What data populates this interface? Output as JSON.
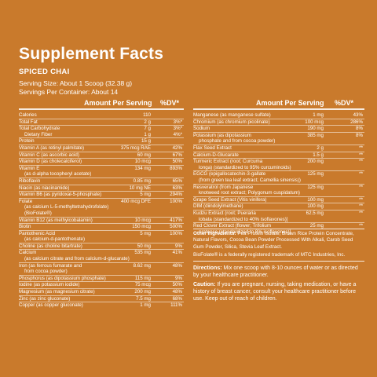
{
  "title": "Supplement Facts",
  "subtitle": "SPICED CHAI",
  "serving_size": "Serving Size: About 1 Scoop (32.38 g)",
  "servings_per_container": "Servings Per Container: About 14",
  "header_amount": "Amount Per Serving",
  "header_dv": "%DV*",
  "left_rows": [
    {
      "name": "Calories",
      "amount": "110",
      "dv": "",
      "sep": true
    },
    {
      "name": "Total Fat",
      "amount": "2 g",
      "dv": "3%*",
      "sep": true
    },
    {
      "name": "Total Carbohydrate",
      "amount": "7 g",
      "dv": "3%*",
      "sep": true
    },
    {
      "name": "Dietary Fiber",
      "amount": "1 g",
      "dv": "4%*",
      "indent": true
    },
    {
      "name": "Protein",
      "amount": "15 g",
      "dv": "",
      "sep": true
    },
    {
      "name": "Vitamin A (as retinyl palmitate)",
      "amount": "375 mcg RAE",
      "dv": "42%",
      "sep": true
    },
    {
      "name": "Vitamin C (as ascorbic acid)",
      "amount": "60 mg",
      "dv": "67%",
      "sep": true
    },
    {
      "name": "Vitamin D (as cholecalciferol)",
      "amount": "10 mcg",
      "dv": "50%",
      "sep": true
    },
    {
      "name": "Vitamin E",
      "amount": "134 mg",
      "dv": "893%",
      "sep": true
    },
    {
      "name": "(as d-alpha tocopheryl acetate)",
      "amount": "",
      "dv": "",
      "indent": true
    },
    {
      "name": "Riboflavin",
      "amount": "0.85 mg",
      "dv": "65%",
      "sep": true
    },
    {
      "name": "Niacin (as niacinamide)",
      "amount": "10 mg NE",
      "dv": "63%",
      "sep": true
    },
    {
      "name": "Vitamin B6 (as pyridoxal-5-phosphate)",
      "amount": "5 mg",
      "dv": "294%",
      "sep": true
    },
    {
      "name": "Folate",
      "amount": "400 mcg DFE",
      "dv": "100%",
      "sep": true
    },
    {
      "name": "(as calcium L-5-methyltetrahydrofolate)",
      "amount": "",
      "dv": "",
      "indent": true
    },
    {
      "name": "(BioFolate®)",
      "amount": "",
      "dv": "",
      "indent": true
    },
    {
      "name": "Vitamin B12 (as methylcobalamin)",
      "amount": "10 mcg",
      "dv": "417%",
      "sep": true
    },
    {
      "name": "Biotin",
      "amount": "150 mcg",
      "dv": "500%",
      "sep": true
    },
    {
      "name": "Pantothenic Acid",
      "amount": "5 mg",
      "dv": "100%",
      "sep": true
    },
    {
      "name": "(as calcium-d-pantothenate)",
      "amount": "",
      "dv": "",
      "indent": true
    },
    {
      "name": "Choline (as choline bitartrate)",
      "amount": "50 mg",
      "dv": "9%",
      "sep": true
    },
    {
      "name": "Calcium",
      "amount": "535 mg",
      "dv": "41%",
      "sep": true
    },
    {
      "name": "(as calcium citrate and from calcium-d-glucarate)",
      "amount": "",
      "dv": "",
      "indent": true
    },
    {
      "name": "Iron (as ferrous fumarate and",
      "amount": "8.62 mg",
      "dv": "48%",
      "sep": true
    },
    {
      "name": "from cocoa powder)",
      "amount": "",
      "dv": "",
      "indent": true
    },
    {
      "name": "Phosphorus (as dipotassium phosphate)",
      "amount": "115 mg",
      "dv": "9%",
      "sep": true
    },
    {
      "name": "Iodine (as potassium iodide)",
      "amount": "75 mcg",
      "dv": "50%",
      "sep": true
    },
    {
      "name": "Magnesium (as magnesium citrate)",
      "amount": "200 mg",
      "dv": "48%",
      "sep": true
    },
    {
      "name": "Zinc (as zinc gluconate)",
      "amount": "7.5 mg",
      "dv": "68%",
      "sep": true
    },
    {
      "name": "Copper (as copper gluconate)",
      "amount": "1 mg",
      "dv": "111%",
      "sep": true
    }
  ],
  "right_rows": [
    {
      "name": "Manganese (as manganese sulfate)",
      "amount": "1 mg",
      "dv": "43%",
      "sep": true
    },
    {
      "name": "Chromium (as chromium picolinate)",
      "amount": "100 mcg",
      "dv": "286%",
      "sep": true
    },
    {
      "name": "Sodium",
      "amount": "190 mg",
      "dv": "8%",
      "sep": true
    },
    {
      "name": "Potassium (as dipotassium",
      "amount": "385 mg",
      "dv": "8%",
      "sep": true
    },
    {
      "name": "phosphate and from cocoa powder)",
      "amount": "",
      "dv": "",
      "indent": true
    },
    {
      "name": "Flax Seed Extract",
      "amount": "2 g",
      "dv": "**",
      "sep": true
    },
    {
      "name": "Calcium-D-Glucarate",
      "amount": "1.5 g",
      "dv": "**",
      "sep": true
    },
    {
      "name": "Turmeric Extract (root; Curcuma",
      "amount": "200 mg",
      "dv": "**",
      "sep": true
    },
    {
      "name": "longa) (standardized to 95% curcuminoids)",
      "amount": "",
      "dv": "",
      "indent": true
    },
    {
      "name": "EGCG (epigallocatechin-3-gallate",
      "amount": "125 mg",
      "dv": "**",
      "sep": true
    },
    {
      "name": "(from green tea leaf extract; Camellia sinensis))",
      "amount": "",
      "dv": "",
      "indent": true
    },
    {
      "name": "Resveratrol (from Japanese",
      "amount": "125 mg",
      "dv": "**",
      "sep": true
    },
    {
      "name": "knotweed root extract; Polygonum cuspidatum)",
      "amount": "",
      "dv": "",
      "indent": true
    },
    {
      "name": "Grape Seed Extract (Vitis vinifera)",
      "amount": "100 mg",
      "dv": "**",
      "sep": true
    },
    {
      "name": "DIM (diindolylmethane)",
      "amount": "100 mg",
      "dv": "**",
      "sep": true
    },
    {
      "name": "Kudzu Extract (root; Pueraria",
      "amount": "62.5 mg",
      "dv": "**",
      "sep": true
    },
    {
      "name": "lobata (standardized to 40% isoflavones)]",
      "amount": "",
      "dv": "",
      "indent": true
    },
    {
      "name": "Red Clover Extract (flower; Trifolium",
      "amount": "25 mg",
      "dv": "**",
      "sep": true
    },
    {
      "name": "pratense (standardized to 8% isoflavones)]",
      "amount": "",
      "dv": "",
      "indent": true
    }
  ],
  "other_ingredients_label": "Other Ingredients:",
  "other_ingredients_text": "Pea Protein Isolate, Brown Rice Protein Concentrate, Natural Flavors, Cocoa Bean Powder Processed With Alkali, Carob Seed Gum Powder, Silica, Stevia Leaf Extract.",
  "trademark_note": "BioFolate® is a federally registered trademark of MTC Industries, Inc.",
  "directions_label": "Directions:",
  "directions_text": "Mix one scoop with 8-10 ounces of water or as directed by your healthcare practitioner.",
  "caution_label": "Caution:",
  "caution_text": "If you are pregnant, nursing, taking medication, or have a history of breast cancer, consult your healthcare practitioner before use. Keep out of reach of children.",
  "colors": {
    "background": "#c97a2c",
    "text": "#ffffff"
  }
}
